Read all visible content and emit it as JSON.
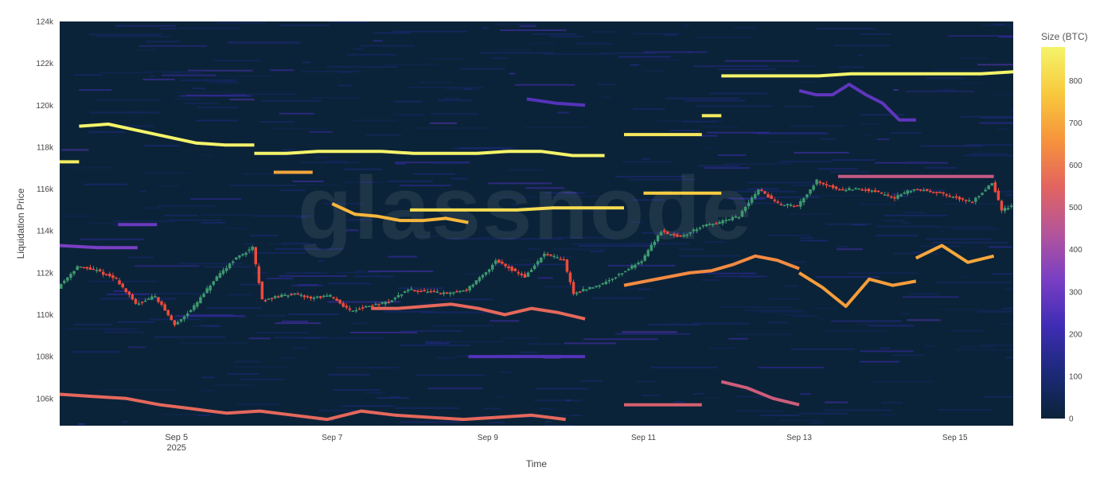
{
  "chart_data": {
    "type": "heatmap",
    "subtype": "liquidation-heatmap-with-candlesticks",
    "xlabel": "Time",
    "ylabel": "Liquidation Price",
    "colorbar": {
      "title": "Size (BTC)",
      "range": [
        0,
        880
      ],
      "ticks": [
        "0",
        "100",
        "200",
        "300",
        "400",
        "500",
        "600",
        "700",
        "800"
      ],
      "tick_values": [
        0,
        100,
        200,
        300,
        400,
        500,
        600,
        700,
        800
      ],
      "colorscale": [
        "#0b2338",
        "#1c2a7a",
        "#3f2cb5",
        "#7a3fc4",
        "#b4559a",
        "#e3645f",
        "#f6943b",
        "#f8c93d",
        "#f4f46a"
      ]
    },
    "watermark": "glassnode",
    "x_range": [
      "2025-09-03T12:00",
      "2025-09-15T18:00"
    ],
    "x_ticks": [
      {
        "date": "2025-09-05",
        "label": "Sep 5",
        "sublabel": "2025"
      },
      {
        "date": "2025-09-07",
        "label": "Sep 7",
        "sublabel": ""
      },
      {
        "date": "2025-09-09",
        "label": "Sep 9",
        "sublabel": ""
      },
      {
        "date": "2025-09-11",
        "label": "Sep 11",
        "sublabel": ""
      },
      {
        "date": "2025-09-13",
        "label": "Sep 13",
        "sublabel": ""
      },
      {
        "date": "2025-09-15",
        "label": "Sep 15",
        "sublabel": ""
      }
    ],
    "y_range": [
      104700,
      124000
    ],
    "y_ticks": [
      {
        "value": 106000,
        "label": "106k"
      },
      {
        "value": 108000,
        "label": "108k"
      },
      {
        "value": 110000,
        "label": "110k"
      },
      {
        "value": 112000,
        "label": "112k"
      },
      {
        "value": 114000,
        "label": "114k"
      },
      {
        "value": 116000,
        "label": "116k"
      },
      {
        "value": 118000,
        "label": "118k"
      },
      {
        "value": 120000,
        "label": "120k"
      },
      {
        "value": 122000,
        "label": "122k"
      },
      {
        "value": 124000,
        "label": "124k"
      }
    ],
    "colors": {
      "background": "#0b2338",
      "candle_up": "#3d9970",
      "candle_down": "#ef4a3c"
    },
    "price_path": [
      [
        "2025-09-03T12:00",
        111300
      ],
      [
        "2025-09-03T18:00",
        112300
      ],
      [
        "2025-09-04T00:00",
        112100
      ],
      [
        "2025-09-04T06:00",
        111700
      ],
      [
        "2025-09-04T12:00",
        110500
      ],
      [
        "2025-09-04T18:00",
        110900
      ],
      [
        "2025-09-05T00:00",
        109500
      ],
      [
        "2025-09-05T06:00",
        110400
      ],
      [
        "2025-09-05T12:00",
        111600
      ],
      [
        "2025-09-05T18:00",
        112600
      ],
      [
        "2025-09-06T00:00",
        113200
      ],
      [
        "2025-09-06T03:00",
        110700
      ],
      [
        "2025-09-06T12:00",
        111000
      ],
      [
        "2025-09-06T18:00",
        110800
      ],
      [
        "2025-09-07T00:00",
        110900
      ],
      [
        "2025-09-07T06:00",
        110200
      ],
      [
        "2025-09-07T18:00",
        110600
      ],
      [
        "2025-09-08T00:00",
        111200
      ],
      [
        "2025-09-08T12:00",
        111000
      ],
      [
        "2025-09-08T18:00",
        111200
      ],
      [
        "2025-09-09T00:00",
        112000
      ],
      [
        "2025-09-09T03:00",
        112600
      ],
      [
        "2025-09-09T12:00",
        111800
      ],
      [
        "2025-09-09T18:00",
        112900
      ],
      [
        "2025-09-10T00:00",
        112600
      ],
      [
        "2025-09-10T03:00",
        111000
      ],
      [
        "2025-09-10T12:00",
        111500
      ],
      [
        "2025-09-10T18:00",
        112000
      ],
      [
        "2025-09-11T00:00",
        112600
      ],
      [
        "2025-09-11T06:00",
        114000
      ],
      [
        "2025-09-11T12:00",
        113700
      ],
      [
        "2025-09-11T18:00",
        114200
      ],
      [
        "2025-09-12T00:00",
        114400
      ],
      [
        "2025-09-12T06:00",
        114700
      ],
      [
        "2025-09-12T12:00",
        116000
      ],
      [
        "2025-09-12T18:00",
        115300
      ],
      [
        "2025-09-13T00:00",
        115200
      ],
      [
        "2025-09-13T06:00",
        116400
      ],
      [
        "2025-09-13T12:00",
        116000
      ],
      [
        "2025-09-13T18:00",
        116000
      ],
      [
        "2025-09-14T00:00",
        115900
      ],
      [
        "2025-09-14T06:00",
        115600
      ],
      [
        "2025-09-14T12:00",
        116000
      ],
      [
        "2025-09-14T18:00",
        115900
      ],
      [
        "2025-09-15T00:00",
        115600
      ],
      [
        "2025-09-15T06:00",
        115400
      ],
      [
        "2025-09-15T12:00",
        116300
      ],
      [
        "2025-09-15T15:00",
        115000
      ],
      [
        "2025-09-15T18:00",
        115200
      ]
    ],
    "liquidation_bands": [
      {
        "start": "2025-09-03T12:00",
        "end": "2025-09-03T18:00",
        "prices": [
          117300,
          117300
        ],
        "size": 860
      },
      {
        "start": "2025-09-03T18:00",
        "end": "2025-09-06T00:00",
        "prices": [
          119000,
          119100,
          118800,
          118500,
          118200,
          118100,
          118100
        ],
        "size": 880
      },
      {
        "start": "2025-09-06T00:00",
        "end": "2025-09-10T12:00",
        "prices": [
          117700,
          117700,
          117800,
          117800,
          117800,
          117700,
          117700,
          117700,
          117800,
          117800,
          117600,
          117600
        ],
        "size": 880
      },
      {
        "start": "2025-09-06T06:00",
        "end": "2025-09-06T18:00",
        "prices": [
          116800,
          116800
        ],
        "size": 700
      },
      {
        "start": "2025-09-07T00:00",
        "end": "2025-09-08T18:00",
        "prices": [
          115300,
          114800,
          114700,
          114500,
          114500,
          114600,
          114400
        ],
        "size": 730
      },
      {
        "start": "2025-09-08T00:00",
        "end": "2025-09-10T18:00",
        "prices": [
          115000,
          115000,
          115000,
          115000,
          115100,
          115100,
          115100
        ],
        "size": 820
      },
      {
        "start": "2025-09-10T18:00",
        "end": "2025-09-11T18:00",
        "prices": [
          118600,
          118600,
          118600
        ],
        "size": 850
      },
      {
        "start": "2025-09-11T00:00",
        "end": "2025-09-12T00:00",
        "prices": [
          115800,
          115800,
          115800
        ],
        "size": 780
      },
      {
        "start": "2025-09-11T18:00",
        "end": "2025-09-12T00:00",
        "prices": [
          119500,
          119500
        ],
        "size": 860
      },
      {
        "start": "2025-09-12T00:00",
        "end": "2025-09-15T18:00",
        "prices": [
          121400,
          121400,
          121400,
          121400,
          121500,
          121500,
          121500,
          121500,
          121500,
          121600
        ],
        "size": 880
      },
      {
        "start": "2025-09-13T12:00",
        "end": "2025-09-15T12:00",
        "prices": [
          116600,
          116600,
          116600,
          116600
        ],
        "size": 480
      },
      {
        "start": "2025-09-07T12:00",
        "end": "2025-09-10T06:00",
        "prices": [
          110300,
          110300,
          110400,
          110500,
          110300,
          110000,
          110300,
          110100,
          109800
        ],
        "size": 560
      },
      {
        "start": "2025-09-10T18:00",
        "end": "2025-09-13T00:00",
        "prices": [
          111400,
          111600,
          111800,
          112000,
          112100,
          112400,
          112800,
          112600,
          112200
        ],
        "size": 640
      },
      {
        "start": "2025-09-13T00:00",
        "end": "2025-09-14T12:00",
        "prices": [
          112000,
          111300,
          110400,
          111700,
          111400,
          111600
        ],
        "size": 680
      },
      {
        "start": "2025-09-14T12:00",
        "end": "2025-09-15T12:00",
        "prices": [
          112700,
          113300,
          112500,
          112800
        ],
        "size": 700
      },
      {
        "start": "2025-09-03T12:00",
        "end": "2025-09-06T12:00",
        "prices": [
          106200,
          106100,
          106000,
          105700,
          105500,
          105300,
          105400,
          105200
        ],
        "size": 560
      },
      {
        "start": "2025-09-06T12:00",
        "end": "2025-09-10T00:00",
        "prices": [
          105200,
          105000,
          105400,
          105200,
          105100,
          105000,
          105100,
          105200,
          105000
        ],
        "size": 560
      },
      {
        "start": "2025-09-08T18:00",
        "end": "2025-09-10T06:00",
        "prices": [
          108000,
          108000,
          108000,
          108000
        ],
        "size": 260
      },
      {
        "start": "2025-09-10T18:00",
        "end": "2025-09-11T18:00",
        "prices": [
          105700,
          105700,
          105700
        ],
        "size": 520
      },
      {
        "start": "2025-09-12T00:00",
        "end": "2025-09-13T00:00",
        "prices": [
          106800,
          106500,
          106000,
          105700
        ],
        "size": 500
      },
      {
        "start": "2025-09-04T06:00",
        "end": "2025-09-04T18:00",
        "prices": [
          114300,
          114300
        ],
        "size": 300
      },
      {
        "start": "2025-09-03T12:00",
        "end": "2025-09-04T12:00",
        "prices": [
          113300,
          113200,
          113200
        ],
        "size": 330
      },
      {
        "start": "2025-09-09T12:00",
        "end": "2025-09-10T06:00",
        "prices": [
          120300,
          120100,
          120000
        ],
        "size": 260
      },
      {
        "start": "2025-09-13T00:00",
        "end": "2025-09-14T12:00",
        "prices": [
          120700,
          120500,
          120500,
          121000,
          120500,
          120100,
          119300,
          119300
        ],
        "size": 280
      }
    ]
  }
}
